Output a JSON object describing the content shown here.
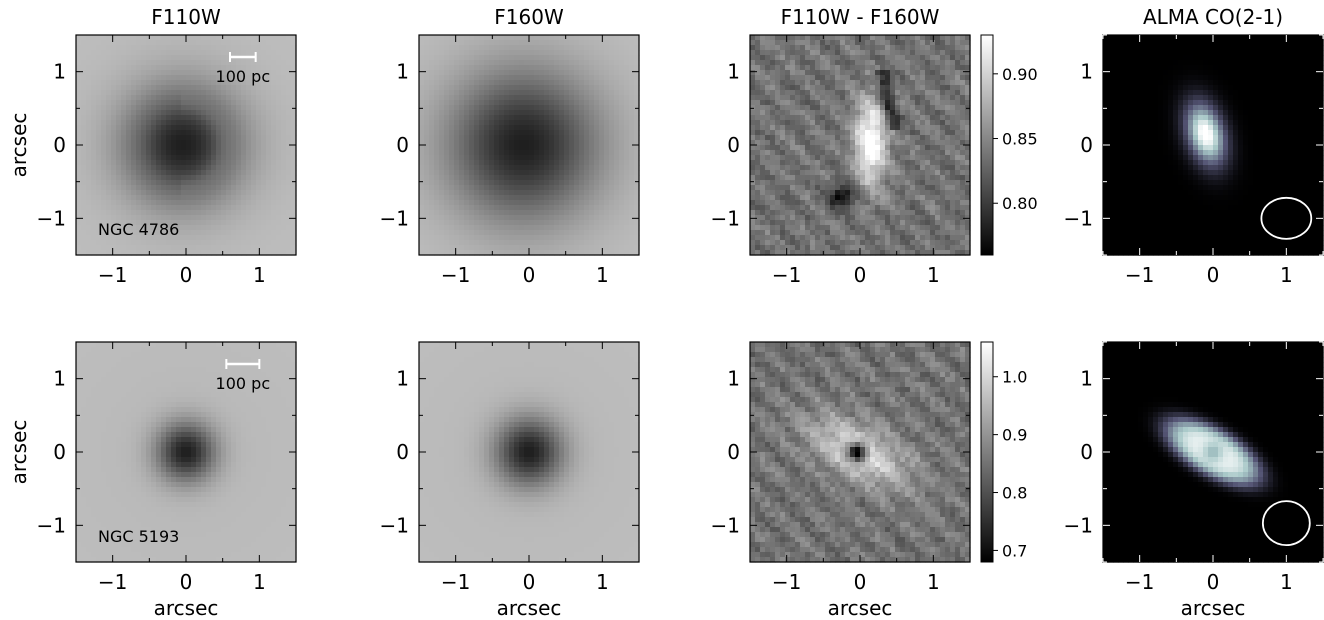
{
  "chart_data": {
    "type": "heatmap",
    "column_titles": [
      "F110W",
      "F160W",
      "F110W - F160W",
      "ALMA CO(2-1)"
    ],
    "xlabel": "arcsec",
    "ylabel": "arcsec",
    "xlim": [
      -1.5,
      1.5
    ],
    "ylim": [
      -1.5,
      1.5
    ],
    "x_ticks": [
      -1,
      0,
      1
    ],
    "y_ticks": [
      -1,
      0,
      1
    ],
    "x_tick_labels": [
      "−1",
      "0",
      "1"
    ],
    "y_tick_labels": [
      "−1",
      "0",
      "1"
    ],
    "colormaps": {
      "hst": "gray",
      "alma": "bone"
    },
    "rows": [
      {
        "galaxy": "NGC 4786",
        "scalebar_label": "100 pc",
        "scalebar_x": [
          0.6,
          0.95
        ],
        "scalebar_y": 1.2,
        "colorbar_ticks": [
          0.8,
          0.85,
          0.9
        ],
        "colorbar_tick_labels": [
          "0.80",
          "0.85",
          "0.90"
        ],
        "colorbar_range": [
          0.76,
          0.93
        ],
        "beam": {
          "x": 1.0,
          "y": -1.0,
          "major": 0.34,
          "minor": 0.28,
          "angle_deg": 0
        },
        "panels": [
          {
            "name": "F110W",
            "map": "core",
            "core": [
              -0.05,
              0.0
            ],
            "core_width": 0.55,
            "ring": true
          },
          {
            "name": "F160W",
            "map": "core",
            "core": [
              -0.08,
              0.0
            ],
            "core_width": 0.7,
            "ring": false
          },
          {
            "name": "F110W - F160W",
            "map": "color",
            "feature": "arc"
          },
          {
            "name": "ALMA CO(2-1)",
            "map": "alma",
            "source": "compact"
          }
        ]
      },
      {
        "galaxy": "NGC 5193",
        "scalebar_label": "100 pc",
        "scalebar_x": [
          0.55,
          1.0
        ],
        "scalebar_y": 1.2,
        "colorbar_ticks": [
          0.7,
          0.8,
          0.9,
          1.0
        ],
        "colorbar_tick_labels": [
          "0.7",
          "0.8",
          "0.9",
          "1.0"
        ],
        "colorbar_range": [
          0.68,
          1.06
        ],
        "beam": {
          "x": 1.0,
          "y": -0.97,
          "major": 0.32,
          "minor": 0.3,
          "angle_deg": 0
        },
        "panels": [
          {
            "name": "F110W",
            "map": "core",
            "core": [
              0.0,
              0.0
            ],
            "core_width": 0.28,
            "ring": false
          },
          {
            "name": "F160W",
            "map": "core",
            "core": [
              0.0,
              0.0
            ],
            "core_width": 0.32,
            "ring": false
          },
          {
            "name": "F110W - F160W",
            "map": "color",
            "feature": "disk"
          },
          {
            "name": "ALMA CO(2-1)",
            "map": "alma",
            "source": "disk"
          }
        ]
      }
    ]
  }
}
